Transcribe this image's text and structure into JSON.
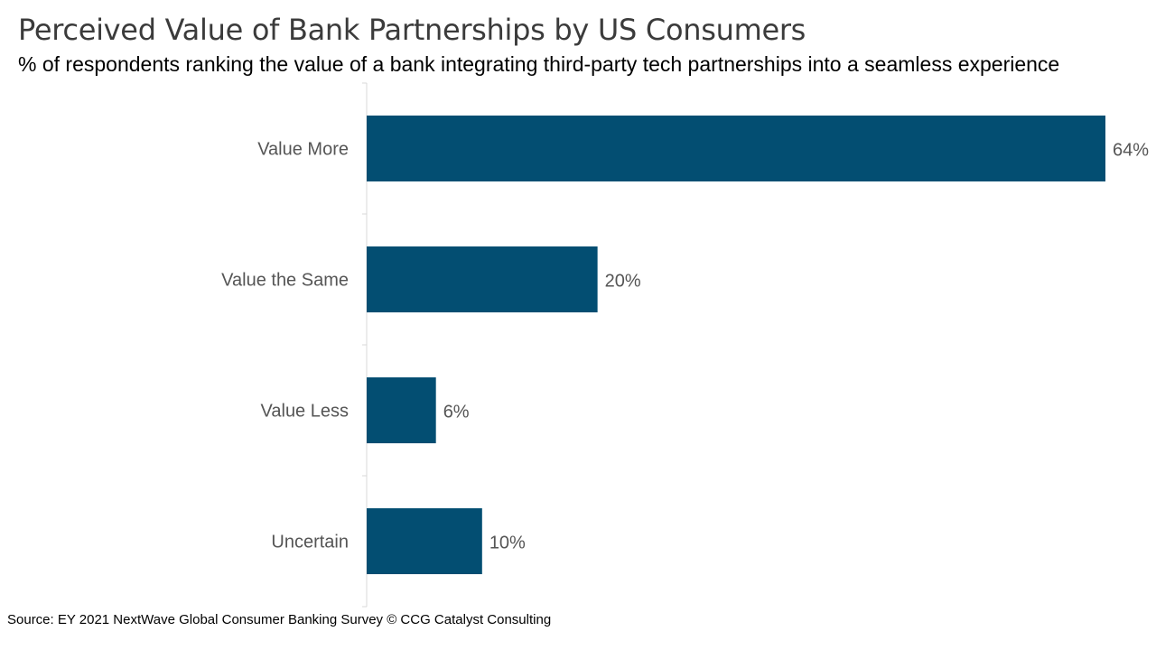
{
  "title": "Perceived Value of Bank Partnerships by US Consumers",
  "subtitle": "% of respondents ranking the value of a bank integrating third-party tech partnerships into a seamless experience",
  "source": "Source: EY 2021 NextWave Global Consumer Banking Survey © CCG Catalyst Consulting",
  "colors": {
    "bar": "#034e72",
    "axis": "#d9d9d9",
    "label": "#555555"
  },
  "chart_data": {
    "type": "bar",
    "orientation": "horizontal",
    "categories": [
      "Value More",
      "Value the Same",
      "Value Less",
      "Uncertain"
    ],
    "values": [
      64,
      20,
      6,
      10
    ],
    "value_labels": [
      "64%",
      "20%",
      "6%",
      "10%"
    ],
    "unit": "%",
    "xlim": [
      0,
      64
    ],
    "grid": false,
    "legend": "none"
  }
}
